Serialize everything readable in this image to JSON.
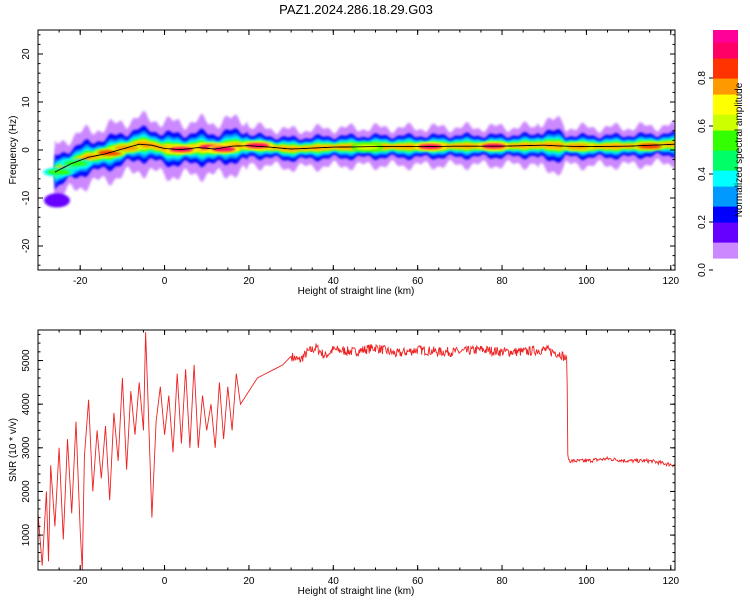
{
  "title": "PAZ1.2024.286.18.29.G03",
  "chart_data": [
    {
      "type": "heatmap",
      "xlabel": "Height of straight line (km)",
      "ylabel": "Frequency (Hz)",
      "xlim": [
        -30,
        121
      ],
      "ylim": [
        -25,
        25
      ],
      "x_ticks": [
        -20,
        0,
        20,
        40,
        60,
        80,
        100,
        120
      ],
      "y_ticks": [
        -20,
        -10,
        0,
        10,
        20
      ],
      "colorbar": {
        "label": "Normalized spectral amplitude",
        "range": [
          0,
          1
        ],
        "ticks": [
          0.0,
          0.2,
          0.4,
          0.6,
          0.8
        ],
        "colors": [
          "#ffffff",
          "#cc88ff",
          "#6600ff",
          "#0000ff",
          "#0099ff",
          "#00ffff",
          "#00ff66",
          "#33ff00",
          "#ccff00",
          "#ffff00",
          "#ff9900",
          "#ff3300",
          "#ff0066",
          "#ff0099"
        ]
      },
      "ridge": [
        {
          "x": -26,
          "y": -4.6
        },
        {
          "x": -22,
          "y": -2.8
        },
        {
          "x": -18,
          "y": -1.5
        },
        {
          "x": -14,
          "y": -0.8
        },
        {
          "x": -10,
          "y": 0.2
        },
        {
          "x": -6,
          "y": 1.2
        },
        {
          "x": -3,
          "y": 1.0
        },
        {
          "x": 0,
          "y": 0.3
        },
        {
          "x": 4,
          "y": 0.1
        },
        {
          "x": 8,
          "y": 0.5
        },
        {
          "x": 12,
          "y": 0.2
        },
        {
          "x": 16,
          "y": 0.8
        },
        {
          "x": 20,
          "y": 0.9
        },
        {
          "x": 25,
          "y": 0.6
        },
        {
          "x": 30,
          "y": 0.2
        },
        {
          "x": 35,
          "y": 0.4
        },
        {
          "x": 40,
          "y": 0.6
        },
        {
          "x": 50,
          "y": 0.7
        },
        {
          "x": 60,
          "y": 0.7
        },
        {
          "x": 70,
          "y": 0.8
        },
        {
          "x": 80,
          "y": 0.8
        },
        {
          "x": 90,
          "y": 1.0
        },
        {
          "x": 95,
          "y": 0.8
        },
        {
          "x": 100,
          "y": 0.7
        },
        {
          "x": 110,
          "y": 0.8
        },
        {
          "x": 121,
          "y": 1.2
        }
      ],
      "blobs": [
        {
          "x": -25.5,
          "y": -10.5,
          "a": 0.18
        },
        {
          "x": -25,
          "y": -4.6,
          "a": 0.55
        },
        {
          "x": -21,
          "y": -2.8,
          "a": 0.5
        },
        {
          "x": -13,
          "y": -0.6,
          "a": 0.85
        },
        {
          "x": -9,
          "y": 0.4,
          "a": 0.8
        },
        {
          "x": 4,
          "y": 0.1,
          "a": 0.95
        },
        {
          "x": 11,
          "y": 0.6,
          "a": 0.9
        },
        {
          "x": 14,
          "y": 0.2,
          "a": 0.9
        },
        {
          "x": 22,
          "y": 0.9,
          "a": 0.9
        },
        {
          "x": 48,
          "y": 0.6,
          "a": 0.7
        },
        {
          "x": 63,
          "y": 0.7,
          "a": 0.9
        },
        {
          "x": 78,
          "y": 0.8,
          "a": 0.95
        },
        {
          "x": 98,
          "y": 0.7,
          "a": 0.8
        },
        {
          "x": 115,
          "y": 0.8,
          "a": 0.85
        }
      ]
    },
    {
      "type": "line",
      "xlabel": "Height of straight line (km)",
      "ylabel": "SNR (10 * v/v)",
      "xlim": [
        -30,
        121
      ],
      "ylim": [
        200,
        5700
      ],
      "x_ticks": [
        -20,
        0,
        20,
        40,
        60,
        80,
        100,
        120
      ],
      "y_ticks": [
        1000,
        2000,
        3000,
        4000,
        5000
      ],
      "series": [
        {
          "color": "#ee2222",
          "x": [
            -30,
            -29,
            -28,
            -27.5,
            -27,
            -26,
            -25,
            -24,
            -23,
            -22,
            -21,
            -20,
            -19.5,
            -19,
            -18,
            -17,
            -16,
            -15,
            -14,
            -13,
            -12,
            -11,
            -10,
            -9,
            -8,
            -7,
            -6,
            -5,
            -4.5,
            -4,
            -3,
            -2,
            -1,
            0,
            1,
            2,
            3,
            4,
            5,
            6,
            7,
            8,
            9,
            10,
            11,
            12,
            13,
            14,
            15,
            16,
            17,
            18,
            20,
            22,
            24,
            26,
            28,
            30,
            32,
            34,
            36,
            38,
            40,
            45,
            50,
            55,
            60,
            65,
            70,
            75,
            80,
            85,
            90,
            94,
            95.4,
            95.6,
            96,
            100,
            105,
            110,
            115,
            121
          ],
          "values": [
            1500,
            300,
            2000,
            400,
            2600,
            1200,
            3000,
            900,
            3200,
            1500,
            3600,
            1100,
            200,
            2800,
            4100,
            2000,
            3400,
            2300,
            3500,
            1800,
            3800,
            2700,
            4600,
            2500,
            4300,
            3300,
            4500,
            3400,
            5650,
            4300,
            1400,
            3600,
            4400,
            3300,
            4200,
            2900,
            4700,
            3100,
            4800,
            3000,
            4900,
            3000,
            4200,
            3400,
            4000,
            3000,
            4500,
            3200,
            4400,
            3400,
            4700,
            4000,
            4300,
            4600,
            4700,
            4800,
            4900,
            5100,
            5000,
            5200,
            5300,
            5100,
            5250,
            5200,
            5300,
            5150,
            5250,
            5200,
            5200,
            5250,
            5200,
            5200,
            5250,
            5150,
            5000,
            2800,
            2700,
            2700,
            2750,
            2700,
            2700,
            2600
          ]
        }
      ]
    }
  ]
}
